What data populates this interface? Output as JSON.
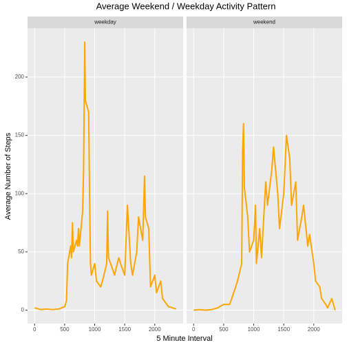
{
  "chart_data": {
    "type": "line",
    "title": "Average Weekend / Weekday Activity Pattern",
    "x_label": "5 Minute Interval",
    "y_label": "Average Number of Steps",
    "color": "#ffa500",
    "grid": true,
    "xlim": [
      -117.75,
      2472.75
    ],
    "ylim": [
      -11.5,
      241.9
    ],
    "xticks": [
      0,
      500,
      1000,
      1500,
      2000
    ],
    "yticks": [
      0,
      50,
      100,
      150,
      200
    ],
    "facets": [
      {
        "name": "weekday",
        "x": [
          0,
          100,
          200,
          300,
          400,
          500,
          530,
          550,
          600,
          615,
          630,
          645,
          700,
          715,
          730,
          745,
          800,
          815,
          830,
          835,
          845,
          900,
          915,
          930,
          945,
          1000,
          1030,
          1100,
          1130,
          1200,
          1215,
          1230,
          1300,
          1330,
          1400,
          1430,
          1500,
          1545,
          1600,
          1630,
          1700,
          1730,
          1800,
          1830,
          1845,
          1900,
          1930,
          2000,
          2030,
          2100,
          2130,
          2200,
          2230,
          2300,
          2355
        ],
        "values": [
          2,
          0.5,
          1,
          0.5,
          1,
          3,
          8,
          40,
          55,
          45,
          75,
          50,
          60,
          55,
          70,
          55,
          85,
          120,
          200,
          230,
          180,
          170,
          100,
          40,
          30,
          40,
          25,
          20,
          25,
          40,
          85,
          45,
          35,
          30,
          45,
          40,
          30,
          90,
          40,
          30,
          50,
          80,
          60,
          115,
          80,
          70,
          20,
          30,
          15,
          25,
          10,
          5,
          3,
          2,
          1
        ]
      },
      {
        "name": "weekend",
        "x": [
          0,
          100,
          200,
          300,
          400,
          500,
          600,
          700,
          730,
          800,
          815,
          830,
          845,
          900,
          930,
          1000,
          1030,
          1045,
          1100,
          1130,
          1200,
          1230,
          1300,
          1330,
          1400,
          1430,
          1500,
          1545,
          1600,
          1630,
          1700,
          1730,
          1800,
          1830,
          1900,
          1930,
          2000,
          2030,
          2100,
          2130,
          2200,
          2230,
          2300,
          2355
        ],
        "values": [
          0,
          0.5,
          0,
          0.5,
          2,
          5,
          5,
          20,
          25,
          40,
          135,
          160,
          105,
          80,
          50,
          60,
          90,
          40,
          70,
          45,
          110,
          90,
          120,
          140,
          100,
          70,
          100,
          150,
          130,
          90,
          110,
          60,
          80,
          90,
          55,
          65,
          40,
          25,
          20,
          10,
          5,
          2,
          10,
          0
        ]
      }
    ]
  }
}
